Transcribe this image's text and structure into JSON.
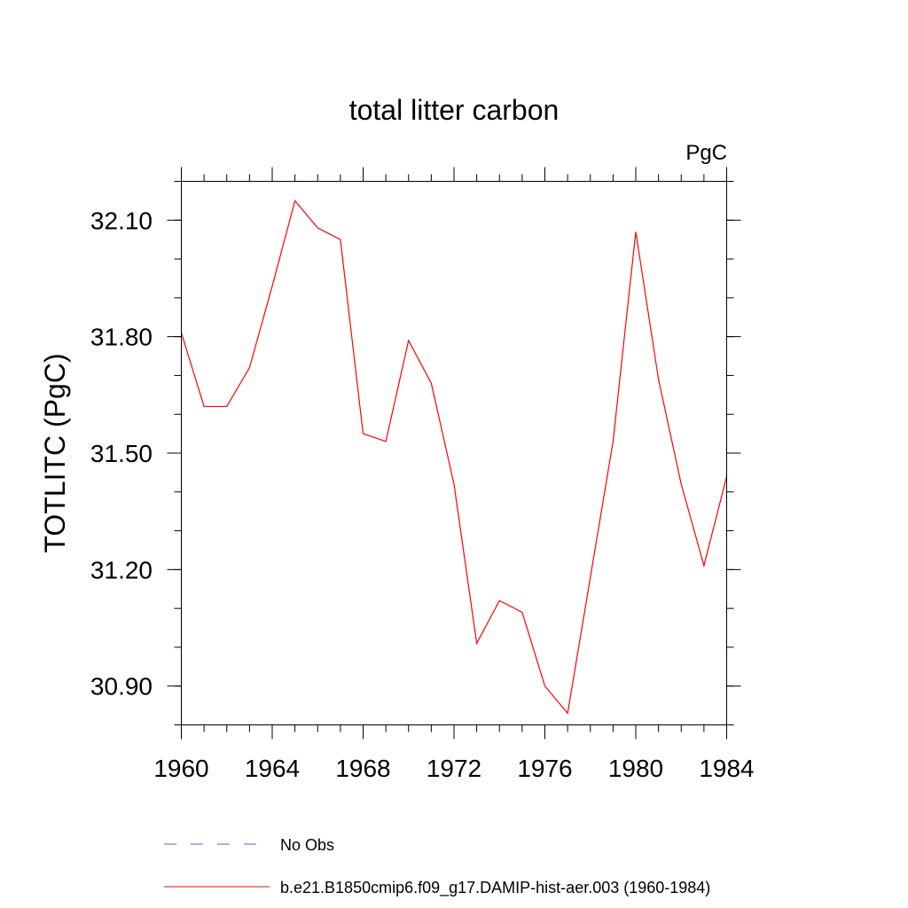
{
  "chart_data": {
    "type": "line",
    "title": "total litter carbon",
    "units_label": "PgC",
    "ylabel": "TOTLITC  (PgC)",
    "xlabel": "",
    "xlim": [
      1960,
      1984
    ],
    "ylim": [
      30.8,
      32.2
    ],
    "x_ticks": [
      1960,
      1964,
      1968,
      1972,
      1976,
      1980,
      1984
    ],
    "x_tick_labels": [
      "1960",
      "1964",
      "1968",
      "1972",
      "1976",
      "1980",
      "1984"
    ],
    "y_ticks": [
      30.9,
      31.2,
      31.5,
      31.8,
      32.1
    ],
    "y_tick_labels": [
      "30.90",
      "31.20",
      "31.50",
      "31.80",
      "32.10"
    ],
    "grid": false,
    "legend_position": "bottom",
    "series": [
      {
        "name": "b.e21.B1850cmip6.f09_g17.DAMIP-hist-aer.003 (1960-1984)",
        "color": "#ff0000",
        "style": "solid",
        "x": [
          1960,
          1961,
          1962,
          1963,
          1964,
          1965,
          1966,
          1967,
          1968,
          1969,
          1970,
          1971,
          1972,
          1973,
          1974,
          1975,
          1976,
          1977,
          1978,
          1979,
          1980,
          1981,
          1982,
          1983,
          1984
        ],
        "y": [
          31.81,
          31.62,
          31.62,
          31.72,
          31.93,
          32.15,
          32.08,
          32.05,
          31.55,
          31.53,
          31.79,
          31.68,
          31.42,
          31.01,
          31.12,
          31.09,
          30.9,
          30.83,
          31.18,
          31.53,
          32.07,
          31.69,
          31.42,
          31.21,
          31.44
        ]
      }
    ],
    "legend": [
      {
        "label": "No Obs",
        "color": "#6a5acd",
        "style": "dashed"
      },
      {
        "label": "b.e21.B1850cmip6.f09_g17.DAMIP-hist-aer.003 (1960-1984)",
        "color": "#ff0000",
        "style": "solid"
      }
    ]
  }
}
